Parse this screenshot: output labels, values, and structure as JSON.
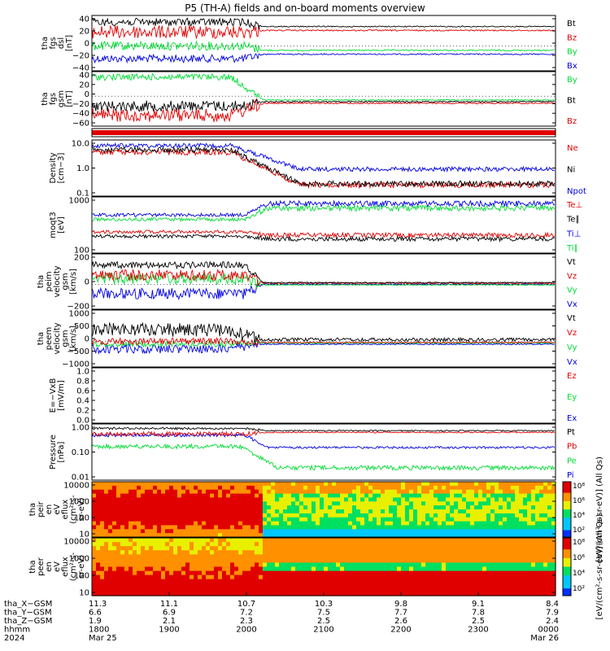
{
  "title": "P5 (TH-A) fields and on-board moments overview",
  "colors": {
    "black": "#000000",
    "red": "#e00000",
    "green": "#00dd33",
    "blue": "#0000e0"
  },
  "panels": [
    {
      "id": "fgs-dsl",
      "ylabel": [
        "tha",
        "fgs",
        "dsl",
        "[nT]"
      ],
      "ticks": [
        "40",
        "20",
        "0",
        "−20",
        "−40"
      ],
      "legend": [
        {
          "t": "Bt",
          "c": "black"
        },
        {
          "t": "Bz",
          "c": "red"
        },
        {
          "t": "By",
          "c": "green"
        },
        {
          "t": "Bx",
          "c": "blue"
        }
      ]
    },
    {
      "id": "fgs-gsm",
      "ylabel": [
        "tha",
        "fgs",
        "gsm",
        "[nT]"
      ],
      "ticks": [
        "40",
        "20",
        "0",
        "−20",
        "−40",
        "−60"
      ],
      "legend": [
        {
          "t": "By",
          "c": "green"
        },
        {
          "t": "Bt",
          "c": "black"
        },
        {
          "t": "Bz",
          "c": "red"
        }
      ]
    },
    {
      "id": "flag",
      "ylabel": [],
      "ticks": [],
      "legend": []
    },
    {
      "id": "density",
      "ylabel": [
        "Density",
        "[cm−3]"
      ],
      "ticks": [
        "10.0",
        "1.0",
        "0.1"
      ],
      "legend": [
        {
          "t": "Ne",
          "c": "red"
        },
        {
          "t": "Ni",
          "c": "black"
        },
        {
          "t": "Npot",
          "c": "blue"
        }
      ]
    },
    {
      "id": "temp",
      "ylabel": [
        "moqt3",
        "[eV]"
      ],
      "ticks": [
        "1000",
        "100"
      ],
      "legend": [
        {
          "t": "Te⊥",
          "c": "red"
        },
        {
          "t": "Te∥",
          "c": "black"
        },
        {
          "t": "Ti⊥",
          "c": "blue"
        },
        {
          "t": "Ti∥",
          "c": "green"
        }
      ]
    },
    {
      "id": "peim",
      "ylabel": [
        "tha",
        "peim",
        "velocity",
        "gsm",
        "[km/s]"
      ],
      "ticks": [
        "200",
        "0",
        "−200"
      ],
      "legend": [
        {
          "t": "Vt",
          "c": "black"
        },
        {
          "t": "Vz",
          "c": "red"
        },
        {
          "t": "Vy",
          "c": "green"
        },
        {
          "t": "Vx",
          "c": "blue"
        }
      ]
    },
    {
      "id": "peem",
      "ylabel": [
        "tha",
        "peem",
        "velocity",
        "gsm",
        "[km/s]"
      ],
      "ticks": [
        "1000",
        "500",
        "0",
        "−500",
        "−1000"
      ],
      "legend": [
        {
          "t": "Vt",
          "c": "black"
        },
        {
          "t": "Vz",
          "c": "red"
        },
        {
          "t": "Vy",
          "c": "green"
        },
        {
          "t": "Vx",
          "c": "blue"
        }
      ]
    },
    {
      "id": "efield",
      "ylabel": [
        "E=−VxB",
        "[mV/m]"
      ],
      "ticks": [
        "1.0",
        "0.8",
        "0.6",
        "0.4",
        "0.2",
        "0.0"
      ],
      "legend": [
        {
          "t": "Ez",
          "c": "red"
        },
        {
          "t": "Ey",
          "c": "green"
        },
        {
          "t": "Ex",
          "c": "blue"
        }
      ]
    },
    {
      "id": "pressure",
      "ylabel": [
        "Pressure",
        "[nPa]"
      ],
      "ticks": [
        "1.00",
        "0.10",
        "0.01"
      ],
      "legend": [
        {
          "t": "Pt",
          "c": "black"
        },
        {
          "t": "Pb",
          "c": "red"
        },
        {
          "t": "Pe",
          "c": "green"
        },
        {
          "t": "Pi",
          "c": "blue"
        }
      ]
    },
    {
      "id": "peir",
      "ylabel": [
        "tha",
        "peir",
        "en",
        "eV",
        "eflux",
        "(cm²-s-",
        "sr-eV)"
      ],
      "ticks": [
        "10000",
        "1000",
        "100",
        "10"
      ],
      "legend": []
    },
    {
      "id": "peer",
      "ylabel": [
        "tha",
        "peer",
        "en",
        "eV",
        "eflux",
        "(cm²-s-",
        "sr-eV)"
      ],
      "ticks": [
        "10000",
        "1000",
        "100",
        "10"
      ],
      "legend": []
    }
  ],
  "colorbars": [
    {
      "labels": [
        "10⁸",
        "10⁶",
        "10⁴",
        "10²"
      ],
      "title": "[eV/(cm²-s-sr-eV)] (All Qs)"
    },
    {
      "labels": [
        "10⁸",
        "10⁶",
        "10⁴",
        "10²"
      ],
      "title": "[eV/(cm²-s-sr-eV)] (All Qs)"
    }
  ],
  "xaxis": {
    "rows": [
      {
        "name": "tha_X−GSM",
        "values": [
          "11.3",
          "11.1",
          "10.7",
          "10.3",
          "9.8",
          "9.1",
          "8.4"
        ]
      },
      {
        "name": "tha_Y−GSM",
        "values": [
          "6.6",
          "6.9",
          "7.2",
          "7.5",
          "7.7",
          "7.8",
          "7.9"
        ]
      },
      {
        "name": "tha_Z−GSM",
        "values": [
          "1.9",
          "2.1",
          "2.3",
          "2.5",
          "2.6",
          "2.5",
          "2.4"
        ]
      },
      {
        "name": "hhmm",
        "values": [
          "1800",
          "1900",
          "2000",
          "2100",
          "2200",
          "2300",
          "0000"
        ]
      },
      {
        "name": "2024",
        "values": [
          "Mar 25",
          "",
          "",
          "",
          "",
          "",
          "Mar 26"
        ]
      }
    ]
  },
  "chart_data": [
    {
      "type": "line",
      "panel": "tha fgs dsl [nT]",
      "x_range": [
        "2024-03-25 18:00",
        "2024-03-26 00:00"
      ],
      "ylim": [
        -40,
        45
      ],
      "series": [
        {
          "name": "Bt",
          "values_before_2000": [
            28,
            45
          ],
          "values_after_2000": [
            25,
            32
          ]
        },
        {
          "name": "Bz",
          "values_before_2000": [
            0,
            38
          ],
          "values_after_2000": [
            22,
            30
          ]
        },
        {
          "name": "By",
          "values_before_2000": [
            -10,
            20
          ],
          "values_after_2000": [
            -8,
            -2
          ]
        },
        {
          "name": "Bx",
          "values_before_2000": [
            -35,
            -5
          ],
          "values_after_2000": [
            -12,
            -6
          ]
        }
      ]
    },
    {
      "type": "line",
      "panel": "tha fgs gsm [nT]",
      "ylim": [
        -70,
        45
      ],
      "series": [
        {
          "name": "By",
          "values_before_2000": [
            20,
            40
          ],
          "values_after_2000": [
            -5,
            5
          ]
        },
        {
          "name": "Bt",
          "values_before_2000": [
            -30,
            0
          ],
          "values_after_2000": [
            -10,
            -5
          ]
        },
        {
          "name": "Bz",
          "values_before_2000": [
            -60,
            -20
          ],
          "values_after_2000": [
            -10,
            -5
          ]
        }
      ]
    },
    {
      "type": "line",
      "panel": "Density [cm-3]",
      "yscale": "log",
      "ylim": [
        0.05,
        30
      ],
      "series": [
        {
          "name": "Ne",
          "start": 20,
          "end": 0.3
        },
        {
          "name": "Ni",
          "start": 15,
          "end": 0.3
        },
        {
          "name": "Npot",
          "start": 25,
          "end": 1.2
        }
      ]
    },
    {
      "type": "line",
      "panel": "moqt3 [eV]",
      "yscale": "log",
      "ylim": [
        30,
        5000
      ],
      "series": [
        {
          "name": "Te⊥",
          "start": 100,
          "end": 60
        },
        {
          "name": "Te∥",
          "start": 80,
          "end": 50
        },
        {
          "name": "Ti⊥",
          "start": 600,
          "end": 2500
        },
        {
          "name": "Ti∥",
          "start": 400,
          "end": 1500
        }
      ]
    },
    {
      "type": "line",
      "panel": "tha peim velocity gsm [km/s]",
      "ylim": [
        -250,
        350
      ],
      "series": [
        {
          "name": "Vt",
          "start": 250,
          "end": 20
        },
        {
          "name": "Vz",
          "start": 150,
          "end": 0
        },
        {
          "name": "Vy",
          "start": 100,
          "end": 0
        },
        {
          "name": "Vx",
          "start": -100,
          "end": 0
        }
      ]
    },
    {
      "type": "line",
      "panel": "tha peem velocity gsm [km/s]",
      "ylim": [
        -1000,
        1000
      ],
      "series": [
        {
          "name": "Vt",
          "range": [
            0,
            800
          ]
        },
        {
          "name": "Vz",
          "range": [
            -300,
            300
          ]
        },
        {
          "name": "Vy",
          "range": [
            -300,
            300
          ]
        },
        {
          "name": "Vx",
          "range": [
            -600,
            200
          ]
        }
      ]
    },
    {
      "type": "line",
      "panel": "E=-VxB [mV/m]",
      "ylim": [
        0,
        1
      ],
      "series": []
    },
    {
      "type": "line",
      "panel": "Pressure [nPa]",
      "yscale": "log",
      "ylim": [
        0.003,
        1.5
      ],
      "series": [
        {
          "name": "Pt",
          "start": 0.6,
          "end": 0.4
        },
        {
          "name": "Pb",
          "start": 0.5,
          "end": 0.35
        },
        {
          "name": "Pe",
          "start": 0.05,
          "end": 0.02
        },
        {
          "name": "Pi",
          "start": 0.3,
          "end": 0.12
        }
      ]
    },
    {
      "type": "heatmap",
      "panel": "tha peir en eV eflux",
      "yscale": "log",
      "ylim": [
        5,
        20000
      ],
      "colorscale": "log 1e2–1e8"
    },
    {
      "type": "heatmap",
      "panel": "tha peer en eV eflux",
      "yscale": "log",
      "ylim": [
        5,
        20000
      ],
      "colorscale": "log 1e2–1e8"
    }
  ]
}
